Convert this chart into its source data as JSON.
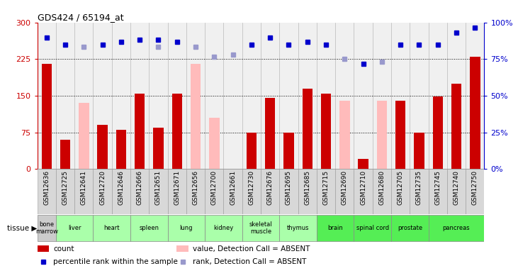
{
  "title": "GDS424 / 65194_at",
  "samples": [
    "GSM12636",
    "GSM12725",
    "GSM12641",
    "GSM12720",
    "GSM12646",
    "GSM12666",
    "GSM12651",
    "GSM12671",
    "GSM12656",
    "GSM12700",
    "GSM12661",
    "GSM12730",
    "GSM12676",
    "GSM12695",
    "GSM12685",
    "GSM12715",
    "GSM12690",
    "GSM12710",
    "GSM12680",
    "GSM12705",
    "GSM12735",
    "GSM12745",
    "GSM12740",
    "GSM12750"
  ],
  "tissues": [
    {
      "name": "bone\nmarrow",
      "start": 0,
      "end": 1,
      "color": "#cccccc"
    },
    {
      "name": "liver",
      "start": 1,
      "end": 3,
      "color": "#aaffaa"
    },
    {
      "name": "heart",
      "start": 3,
      "end": 5,
      "color": "#aaffaa"
    },
    {
      "name": "spleen",
      "start": 5,
      "end": 7,
      "color": "#aaffaa"
    },
    {
      "name": "lung",
      "start": 7,
      "end": 9,
      "color": "#aaffaa"
    },
    {
      "name": "kidney",
      "start": 9,
      "end": 11,
      "color": "#aaffaa"
    },
    {
      "name": "skeletal\nmuscle",
      "start": 11,
      "end": 13,
      "color": "#aaffaa"
    },
    {
      "name": "thymus",
      "start": 13,
      "end": 15,
      "color": "#aaffaa"
    },
    {
      "name": "brain",
      "start": 15,
      "end": 17,
      "color": "#55ee55"
    },
    {
      "name": "spinal cord",
      "start": 17,
      "end": 19,
      "color": "#55ee55"
    },
    {
      "name": "prostate",
      "start": 19,
      "end": 21,
      "color": "#55ee55"
    },
    {
      "name": "pancreas",
      "start": 21,
      "end": 24,
      "color": "#55ee55"
    }
  ],
  "count_present": [
    215,
    60,
    null,
    90,
    80,
    155,
    85,
    155,
    null,
    null,
    null,
    75,
    145,
    75,
    165,
    155,
    null,
    20,
    null,
    140,
    75,
    148,
    175,
    230
  ],
  "count_absent": [
    null,
    null,
    135,
    null,
    null,
    null,
    null,
    null,
    215,
    105,
    null,
    null,
    null,
    null,
    null,
    null,
    140,
    null,
    140,
    null,
    null,
    null,
    null,
    null
  ],
  "rank_present": [
    270,
    255,
    null,
    255,
    260,
    265,
    265,
    260,
    null,
    null,
    null,
    255,
    270,
    255,
    260,
    255,
    null,
    215,
    null,
    255,
    255,
    255,
    280,
    290
  ],
  "rank_absent": [
    null,
    null,
    250,
    null,
    null,
    null,
    250,
    null,
    250,
    230,
    235,
    null,
    null,
    null,
    null,
    null,
    225,
    null,
    220,
    null,
    null,
    null,
    null,
    null
  ],
  "ylim_left": [
    0,
    300
  ],
  "ylim_right": [
    0,
    100
  ],
  "yticks_left": [
    0,
    75,
    150,
    225,
    300
  ],
  "yticks_right": [
    0,
    25,
    50,
    75,
    100
  ],
  "bar_width": 0.55,
  "count_color": "#cc0000",
  "absent_bar_color": "#ffbbbb",
  "rank_present_color": "#0000cc",
  "rank_absent_color": "#9999cc",
  "hline_color": "black",
  "hline_style": "dotted",
  "chart_bg": "#f0f0f0",
  "col_sep_color": "#aaaaaa",
  "legend_items": [
    {
      "color": "#cc0000",
      "label": "count",
      "shape": "rect"
    },
    {
      "color": "#0000cc",
      "label": "percentile rank within the sample",
      "shape": "square"
    },
    {
      "color": "#ffbbbb",
      "label": "value, Detection Call = ABSENT",
      "shape": "rect"
    },
    {
      "color": "#9999cc",
      "label": "rank, Detection Call = ABSENT",
      "shape": "square"
    }
  ]
}
